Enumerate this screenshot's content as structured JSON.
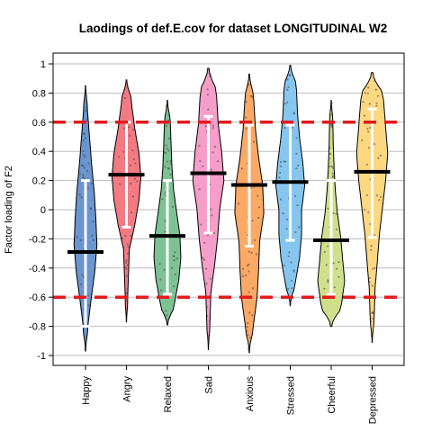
{
  "chart_data": {
    "type": "violin",
    "title": "Laodings of def.E.cov for dataset LONGITUDINAL W2",
    "xlabel": "",
    "ylabel": "Factor loading of F2",
    "ylim": [
      -1.1,
      1.1
    ],
    "yticks": [
      1,
      0.8,
      0.6,
      0.4,
      0.2,
      0,
      -0.2,
      -0.4,
      -0.6,
      -0.8,
      -1
    ],
    "ytick_labels": [
      "1",
      "0.8",
      "0.6",
      "0.4",
      "0.2",
      "0",
      "-0.2",
      "-0.4",
      "-0.6",
      "-0.8",
      "-1"
    ],
    "reference_lines": [
      0.6,
      -0.6
    ],
    "reference_line_color": "#e41a1c",
    "categories": [
      "Happy",
      "Angry",
      "Relaxed",
      "Sad",
      "Anxious",
      "Stressed",
      "Cheerful",
      "Depressed"
    ],
    "colors": [
      "#6a95cf",
      "#f37a83",
      "#7dc293",
      "#f59ec8",
      "#fca966",
      "#86c6ee",
      "#cfe08c",
      "#fdd882"
    ],
    "medians": [
      -0.29,
      0.24,
      -0.18,
      0.25,
      0.17,
      0.19,
      -0.21,
      0.26
    ],
    "whiskers": [
      [
        -0.8,
        0.2
      ],
      [
        -0.12,
        0.6
      ],
      [
        -0.58,
        0.2
      ],
      [
        -0.16,
        0.64
      ],
      [
        -0.25,
        0.58
      ],
      [
        -0.21,
        0.58
      ],
      [
        -0.58,
        0.2
      ],
      [
        -0.19,
        0.69
      ]
    ],
    "ranges": [
      [
        -0.97,
        0.85
      ],
      [
        -0.77,
        0.89
      ],
      [
        -0.79,
        0.75
      ],
      [
        -0.96,
        0.97
      ],
      [
        -0.98,
        0.93
      ],
      [
        -0.66,
        0.99
      ],
      [
        -0.8,
        0.75
      ],
      [
        -0.91,
        0.94
      ]
    ],
    "widths": [
      [
        0.05,
        0.12,
        0.28,
        0.45,
        0.55,
        0.5,
        0.42,
        0.3,
        0.2,
        0.1,
        0.05
      ],
      [
        0.03,
        0.06,
        0.1,
        0.14,
        0.4,
        0.6,
        0.7,
        0.6,
        0.4,
        0.25,
        0.12
      ],
      [
        0.12,
        0.35,
        0.55,
        0.65,
        0.6,
        0.45,
        0.3,
        0.22,
        0.18,
        0.14,
        0.05
      ],
      [
        0.03,
        0.08,
        0.12,
        0.3,
        0.45,
        0.55,
        0.75,
        0.65,
        0.48,
        0.4,
        0.2
      ],
      [
        0.05,
        0.2,
        0.38,
        0.45,
        0.5,
        0.7,
        0.65,
        0.45,
        0.3,
        0.22,
        0.1
      ],
      [
        0.04,
        0.25,
        0.45,
        0.55,
        0.55,
        0.7,
        0.6,
        0.45,
        0.35,
        0.3,
        0.15
      ],
      [
        0.2,
        0.5,
        0.65,
        0.55,
        0.45,
        0.3,
        0.2,
        0.14,
        0.1,
        0.08,
        0.04
      ],
      [
        0.04,
        0.1,
        0.14,
        0.25,
        0.35,
        0.5,
        0.65,
        0.75,
        0.65,
        0.55,
        0.25
      ]
    ]
  }
}
